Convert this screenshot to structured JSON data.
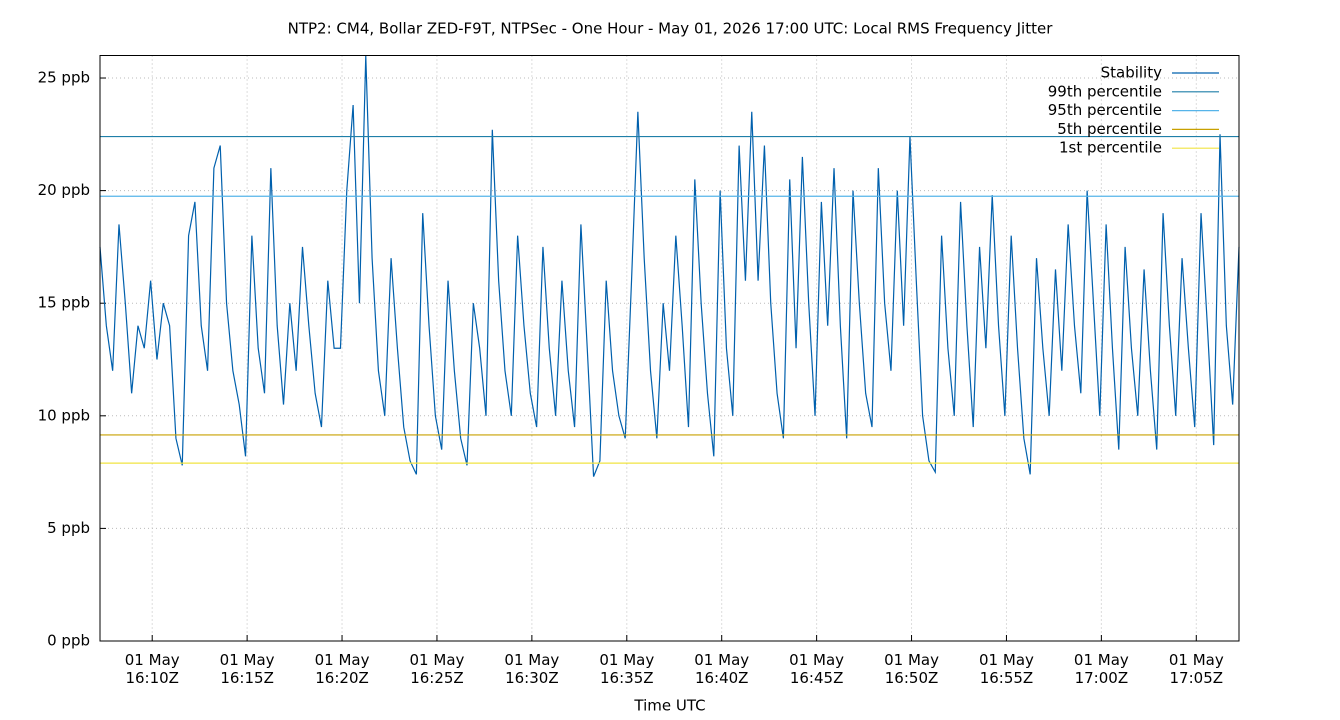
{
  "chart_data": {
    "type": "line",
    "title": "NTP2: CM4, Bollar ZED-F9T, NTPSec - One Hour - May 01, 2026 17:00 UTC: Local RMS Frequency Jitter",
    "xlabel": "Time UTC",
    "xlim": [
      "16:07:15",
      "17:07:15"
    ],
    "xticks": [
      {
        "value": "16:10:00",
        "label": "01 May\n16:10Z"
      },
      {
        "value": "16:15:00",
        "label": "01 May\n16:15Z"
      },
      {
        "value": "16:20:00",
        "label": "01 May\n16:20Z"
      },
      {
        "value": "16:25:00",
        "label": "01 May\n16:25Z"
      },
      {
        "value": "16:30:00",
        "label": "01 May\n16:30Z"
      },
      {
        "value": "16:35:00",
        "label": "01 May\n16:35Z"
      },
      {
        "value": "16:40:00",
        "label": "01 May\n16:40Z"
      },
      {
        "value": "16:45:00",
        "label": "01 May\n16:45Z"
      },
      {
        "value": "16:50:00",
        "label": "01 May\n16:50Z"
      },
      {
        "value": "16:55:00",
        "label": "01 May\n16:55Z"
      },
      {
        "value": "17:00:00",
        "label": "01 May\n17:00Z"
      },
      {
        "value": "17:05:00",
        "label": "01 May\n17:05Z"
      }
    ],
    "ylim": [
      0,
      26
    ],
    "yticks": [
      {
        "value": 0,
        "label": "0 ppb"
      },
      {
        "value": 5,
        "label": "5 ppb"
      },
      {
        "value": 10,
        "label": "10 ppb"
      },
      {
        "value": 15,
        "label": "15 ppb"
      },
      {
        "value": 20,
        "label": "20 ppb"
      },
      {
        "value": 25,
        "label": "25 ppb"
      }
    ],
    "grid": true,
    "legend": "top-right",
    "x": [
      "16:07:15",
      "16:07:35",
      "16:07:55",
      "16:08:15",
      "16:08:35",
      "16:08:55",
      "16:09:15",
      "16:09:35",
      "16:09:55",
      "16:10:15",
      "16:10:35",
      "16:10:55",
      "16:11:15",
      "16:11:35",
      "16:11:55",
      "16:12:15",
      "16:12:35",
      "16:12:55",
      "16:13:15",
      "16:13:35",
      "16:13:55",
      "16:14:15",
      "16:14:35",
      "16:14:55",
      "16:15:15",
      "16:15:35",
      "16:15:55",
      "16:16:15",
      "16:16:35",
      "16:16:55",
      "16:17:15",
      "16:17:35",
      "16:17:55",
      "16:18:15",
      "16:18:35",
      "16:18:55",
      "16:19:15",
      "16:19:35",
      "16:19:55",
      "16:20:15",
      "16:20:35",
      "16:20:55",
      "16:21:15",
      "16:21:35",
      "16:21:55",
      "16:22:15",
      "16:22:35",
      "16:22:55",
      "16:23:15",
      "16:23:35",
      "16:23:55",
      "16:24:15",
      "16:24:35",
      "16:24:55",
      "16:25:15",
      "16:25:35",
      "16:25:55",
      "16:26:15",
      "16:26:35",
      "16:26:55",
      "16:27:15",
      "16:27:35",
      "16:27:55",
      "16:28:15",
      "16:28:35",
      "16:28:55",
      "16:29:15",
      "16:29:35",
      "16:29:55",
      "16:30:15",
      "16:30:35",
      "16:30:55",
      "16:31:15",
      "16:31:35",
      "16:31:55",
      "16:32:15",
      "16:32:35",
      "16:32:55",
      "16:33:15",
      "16:33:35",
      "16:33:55",
      "16:34:15",
      "16:34:35",
      "16:34:55",
      "16:35:15",
      "16:35:35",
      "16:35:55",
      "16:36:15",
      "16:36:35",
      "16:36:55",
      "16:37:15",
      "16:37:35",
      "16:37:55",
      "16:38:15",
      "16:38:35",
      "16:38:55",
      "16:39:15",
      "16:39:35",
      "16:39:55",
      "16:40:15",
      "16:40:35",
      "16:40:55",
      "16:41:15",
      "16:41:35",
      "16:41:55",
      "16:42:15",
      "16:42:35",
      "16:42:55",
      "16:43:15",
      "16:43:35",
      "16:43:55",
      "16:44:15",
      "16:44:35",
      "16:44:55",
      "16:45:15",
      "16:45:35",
      "16:45:55",
      "16:46:15",
      "16:46:35",
      "16:46:55",
      "16:47:15",
      "16:47:35",
      "16:47:55",
      "16:48:15",
      "16:48:35",
      "16:48:55",
      "16:49:15",
      "16:49:35",
      "16:49:55",
      "16:50:15",
      "16:50:35",
      "16:50:55",
      "16:51:15",
      "16:51:35",
      "16:51:55",
      "16:52:15",
      "16:52:35",
      "16:52:55",
      "16:53:15",
      "16:53:35",
      "16:53:55",
      "16:54:15",
      "16:54:35",
      "16:54:55",
      "16:55:15",
      "16:55:35",
      "16:55:55",
      "16:56:15",
      "16:56:35",
      "16:56:55",
      "16:57:15",
      "16:57:35",
      "16:57:55",
      "16:58:15",
      "16:58:35",
      "16:58:55",
      "16:59:15",
      "16:59:35",
      "16:59:55",
      "17:00:15",
      "17:00:35",
      "17:00:55",
      "17:01:15",
      "17:01:35",
      "17:01:55",
      "17:02:15",
      "17:02:35",
      "17:02:55",
      "17:03:15",
      "17:03:35",
      "17:03:55",
      "17:04:15",
      "17:04:35",
      "17:04:55",
      "17:05:15",
      "17:05:35",
      "17:05:55",
      "17:06:15",
      "17:06:35",
      "17:06:55",
      "17:07:15"
    ],
    "series": [
      {
        "name": "Stability",
        "color": "#0060ad",
        "values": [
          17.5,
          14,
          12,
          18.5,
          15,
          11,
          14,
          13,
          16,
          12.5,
          15,
          14,
          9,
          7.8,
          18,
          19.5,
          14,
          12,
          21,
          22,
          15,
          12,
          10.5,
          8.2,
          18,
          13,
          11,
          21,
          14,
          10.5,
          15,
          12,
          17.5,
          14,
          11,
          9.5,
          16,
          13,
          13,
          20,
          23.8,
          15,
          26,
          17,
          12,
          10,
          17,
          13,
          9.5,
          8,
          7.4,
          19,
          14,
          10,
          8.5,
          16,
          12,
          9,
          7.8,
          15,
          13,
          10,
          22.7,
          16,
          12,
          10,
          18,
          14,
          11,
          9.5,
          17.5,
          13,
          10,
          16,
          12,
          9.5,
          18.5,
          13,
          7.3,
          8,
          16,
          12,
          10,
          9,
          16,
          23.5,
          17,
          12,
          9,
          15,
          12,
          18,
          14,
          9.5,
          20.5,
          15,
          11,
          8.2,
          20,
          13,
          10,
          22,
          16,
          23.5,
          16,
          22,
          15,
          11,
          9,
          20.5,
          13,
          21.5,
          15,
          10,
          19.5,
          14,
          21,
          14,
          9,
          20,
          15,
          11,
          9.5,
          21,
          15,
          12,
          20,
          14,
          22.4,
          16,
          10,
          8,
          7.5,
          18,
          13,
          10,
          19.5,
          14,
          9.5,
          17.5,
          13,
          19.8,
          14,
          10,
          18,
          13,
          9,
          7.4,
          17,
          13,
          10,
          16.5,
          12,
          18.5,
          14,
          11,
          20,
          15,
          10,
          18.5,
          13,
          8.5,
          17.5,
          13,
          10,
          16.5,
          12,
          8.5,
          19,
          14,
          10,
          17,
          13,
          9.5,
          19,
          14,
          8.7,
          22.5,
          14,
          10.5,
          17.5
        ]
      },
      {
        "name": "99th percentile",
        "color": "#1f7fa8",
        "value": 22.4
      },
      {
        "name": "95th percentile",
        "color": "#56b4e9",
        "value": 19.75
      },
      {
        "name": "5th percentile",
        "color": "#c8a000",
        "value": 9.15
      },
      {
        "name": "1st percentile",
        "color": "#f0e442",
        "value": 7.9
      }
    ]
  }
}
